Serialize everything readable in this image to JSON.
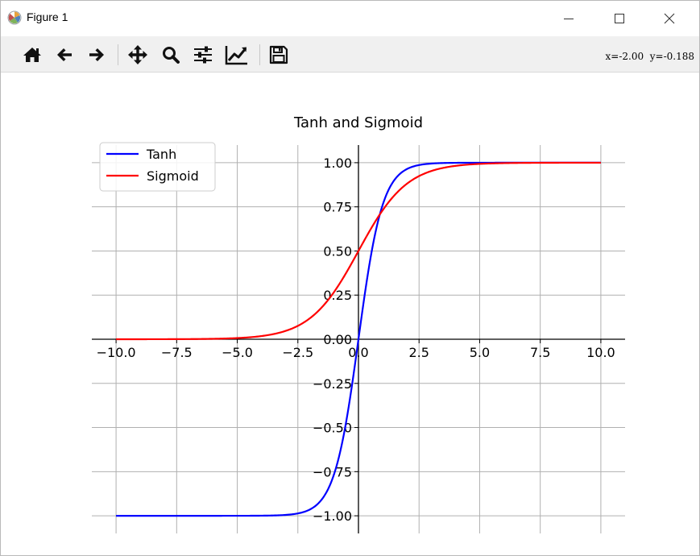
{
  "window": {
    "title": "Figure 1"
  },
  "toolbar": {
    "buttons": [
      {
        "name": "home",
        "icon": "home-icon"
      },
      {
        "name": "back",
        "icon": "arrow-left-icon"
      },
      {
        "name": "forward",
        "icon": "arrow-right-icon"
      },
      {
        "name": "pan",
        "icon": "move-icon"
      },
      {
        "name": "zoom",
        "icon": "magnifier-icon"
      },
      {
        "name": "configure-subplots",
        "icon": "sliders-icon"
      },
      {
        "name": "edit-axis",
        "icon": "line-chart-icon"
      },
      {
        "name": "save",
        "icon": "floppy-disk-icon"
      }
    ],
    "coords": "x=-2.00  y=-0.188"
  },
  "colors": {
    "tanh": "#0000ff",
    "sigmoid": "#ff0000",
    "grid": "#b0b0b0",
    "axis": "#000000"
  },
  "chart_data": {
    "type": "line",
    "title": "Tanh and Sigmoid",
    "xlabel": "",
    "ylabel": "",
    "xlim": [
      -11,
      11
    ],
    "ylim": [
      -1.1,
      1.1
    ],
    "xticks": [
      -10.0,
      -7.5,
      -5.0,
      -2.5,
      0.0,
      2.5,
      5.0,
      7.5,
      10.0
    ],
    "xtick_labels": [
      "−10.0",
      "−7.5",
      "−5.0",
      "−2.5",
      "0.0",
      "2.5",
      "5.0",
      "7.5",
      "10.0"
    ],
    "yticks": [
      1.0,
      0.75,
      0.5,
      0.25,
      0.0,
      -0.25,
      -0.5,
      -0.75,
      -1.0
    ],
    "ytick_labels": [
      "1.00",
      "0.75",
      "0.50",
      "0.25",
      "0.00",
      "−0.25",
      "−0.50",
      "−0.75",
      "−1.00"
    ],
    "grid": true,
    "spines": "centered",
    "legend": "top-left",
    "series": [
      {
        "name": "Tanh",
        "function": "tanh",
        "x_range": [
          -10,
          10
        ],
        "values": [
          [
            -10,
            -1.0
          ],
          [
            -7.5,
            -1.0
          ],
          [
            -5,
            -0.9999
          ],
          [
            -3,
            -0.995
          ],
          [
            -2.5,
            -0.987
          ],
          [
            -2,
            -0.964
          ],
          [
            -1.5,
            -0.905
          ],
          [
            -1,
            -0.762
          ],
          [
            -0.5,
            -0.462
          ],
          [
            0,
            0.0
          ],
          [
            0.5,
            0.462
          ],
          [
            1,
            0.762
          ],
          [
            1.5,
            0.905
          ],
          [
            2,
            0.964
          ],
          [
            2.5,
            0.987
          ],
          [
            3,
            0.995
          ],
          [
            5,
            0.9999
          ],
          [
            7.5,
            1.0
          ],
          [
            10,
            1.0
          ]
        ]
      },
      {
        "name": "Sigmoid",
        "function": "sigmoid",
        "x_range": [
          -10,
          10
        ],
        "values": [
          [
            -10,
            4.54e-05
          ],
          [
            -7.5,
            0.00055
          ],
          [
            -5,
            0.0067
          ],
          [
            -4,
            0.018
          ],
          [
            -3,
            0.047
          ],
          [
            -2,
            0.119
          ],
          [
            -1,
            0.269
          ],
          [
            0,
            0.5
          ],
          [
            1,
            0.731
          ],
          [
            2,
            0.881
          ],
          [
            3,
            0.953
          ],
          [
            4,
            0.982
          ],
          [
            5,
            0.9933
          ],
          [
            7.5,
            0.99945
          ],
          [
            10,
            0.99995
          ]
        ]
      }
    ]
  }
}
